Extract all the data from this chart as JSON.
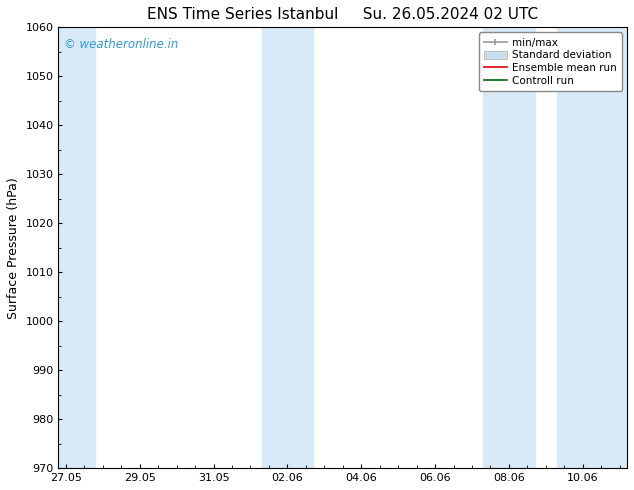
{
  "title": "ENS Time Series Istanbul",
  "title2": "Su. 26.05.2024 02 UTC",
  "ylabel": "Surface Pressure (hPa)",
  "ylim": [
    970,
    1060
  ],
  "yticks": [
    970,
    980,
    990,
    1000,
    1010,
    1020,
    1030,
    1040,
    1050,
    1060
  ],
  "xtick_labels": [
    "27.05",
    "29.05",
    "31.05",
    "02.06",
    "04.06",
    "06.06",
    "08.06",
    "10.06"
  ],
  "xtick_positions": [
    0.0,
    2.0,
    4.0,
    6.0,
    8.0,
    10.0,
    12.0,
    14.0
  ],
  "xlim": [
    -0.2,
    15.2
  ],
  "shade_bands": [
    {
      "x_start": -0.2,
      "x_end": 0.8
    },
    {
      "x_start": 5.3,
      "x_end": 6.7
    },
    {
      "x_start": 11.3,
      "x_end": 12.7
    },
    {
      "x_start": 13.3,
      "x_end": 15.2
    }
  ],
  "shade_color": "#d8eaf8",
  "background_color": "#ffffff",
  "watermark_text": "© weatheronline.in",
  "watermark_color": "#3399cc",
  "title_fontsize": 11,
  "tick_fontsize": 8,
  "ylabel_fontsize": 9,
  "legend_fontsize": 7.5
}
